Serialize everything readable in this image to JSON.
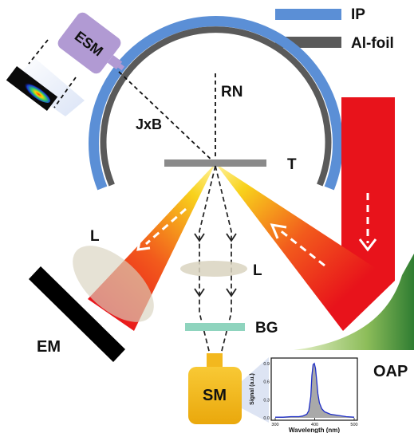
{
  "legend": {
    "ip": {
      "label": "IP",
      "color": "#5b8fd6"
    },
    "al_foil": {
      "label": "Al-foil",
      "color": "#5a5a5a"
    }
  },
  "labels": {
    "esm": "ESM",
    "rn": "RN",
    "jxb": "JxB",
    "target": "T",
    "lens_left": "L",
    "lens_center": "L",
    "em": "EM",
    "bg": "BG",
    "sm": "SM",
    "oap": "OAP"
  },
  "colors": {
    "laser_red": "#e8131b",
    "beam_yellow": "#f7d21a",
    "esm_box": "#b19ad3",
    "sm_box": "#f3b81e",
    "bg_filter": "#8fd4be",
    "oap_dark": "#2f7d32",
    "oap_light": "#cfe3a6",
    "em_block": "#000000",
    "lens": "#d9d3bf"
  },
  "inset": {
    "xlabel": "Wavelength (nm)",
    "ylabel": "Signal (a.u.)",
    "x_ticks": [
      "300",
      "400",
      "500"
    ],
    "y_ticks": [
      "0.0",
      "0.3",
      "0.6",
      "0.9"
    ]
  },
  "chart_data": {
    "type": "line",
    "xlabel": "Wavelength (nm)",
    "ylabel": "Signal (a.u.)",
    "xlim": [
      300,
      500
    ],
    "ylim": [
      0,
      0.95
    ],
    "x": [
      300,
      320,
      340,
      360,
      370,
      380,
      385,
      390,
      393,
      396,
      399,
      402,
      405,
      408,
      412,
      418,
      425,
      440,
      460,
      480,
      500
    ],
    "y": [
      0.01,
      0.01,
      0.02,
      0.02,
      0.03,
      0.06,
      0.12,
      0.35,
      0.7,
      0.88,
      0.9,
      0.82,
      0.62,
      0.4,
      0.25,
      0.15,
      0.1,
      0.06,
      0.04,
      0.02,
      0.01
    ],
    "grid": false
  }
}
